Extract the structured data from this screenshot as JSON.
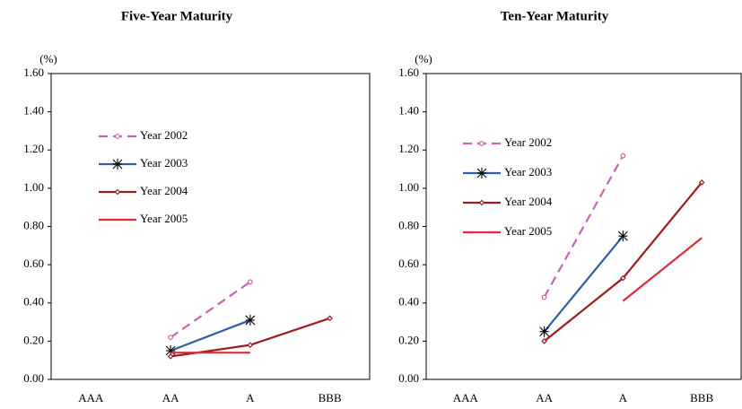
{
  "chart_data": [
    {
      "type": "line",
      "title": "Five-Year Maturity",
      "ylabel": "(%)",
      "categories": [
        "AAA",
        "AA",
        "A",
        "BBB"
      ],
      "ylim": [
        0,
        1.6
      ],
      "yticks": [
        {
          "value": 0,
          "label": "0.00"
        },
        {
          "value": 0.2,
          "label": "0.20"
        },
        {
          "value": 0.4,
          "label": "0.40"
        },
        {
          "value": 0.6,
          "label": "0.60"
        },
        {
          "value": 0.8,
          "label": "0.80"
        },
        {
          "value": 1.0,
          "label": "1.00"
        },
        {
          "value": 1.2,
          "label": "1.20"
        },
        {
          "value": 1.4,
          "label": "1.40"
        },
        {
          "value": 1.6,
          "label": "1.60"
        }
      ],
      "legend": "upper left",
      "series": [
        {
          "name": "Year 2002",
          "color": "#c864b4",
          "dash": true,
          "marker": "circle",
          "values": [
            null,
            0.22,
            0.51,
            null
          ]
        },
        {
          "name": "Year 2003",
          "color": "#2e5fa0",
          "dash": false,
          "marker": "asterisk",
          "values": [
            null,
            0.15,
            0.31,
            null
          ]
        },
        {
          "name": "Year 2004",
          "color": "#9b1c20",
          "dash": false,
          "marker": "diamond",
          "values": [
            null,
            0.12,
            0.18,
            0.32
          ]
        },
        {
          "name": "Year 2005",
          "color": "#e0283c",
          "dash": false,
          "marker": "none",
          "values": [
            null,
            0.14,
            0.14,
            null
          ]
        }
      ]
    },
    {
      "type": "line",
      "title": "Ten-Year Maturity",
      "ylabel": "(%)",
      "categories": [
        "AAA",
        "AA",
        "A",
        "BBB"
      ],
      "ylim": [
        0,
        1.6
      ],
      "yticks": [
        {
          "value": 0,
          "label": "0.00"
        },
        {
          "value": 0.2,
          "label": "0.20"
        },
        {
          "value": 0.4,
          "label": "0.40"
        },
        {
          "value": 0.6,
          "label": "0.60"
        },
        {
          "value": 0.8,
          "label": "0.80"
        },
        {
          "value": 1.0,
          "label": "1.00"
        },
        {
          "value": 1.2,
          "label": "1.20"
        },
        {
          "value": 1.4,
          "label": "1.40"
        },
        {
          "value": 1.6,
          "label": "1.60"
        }
      ],
      "legend": "upper left",
      "series": [
        {
          "name": "Year 2002",
          "color": "#c864b4",
          "dash": true,
          "marker": "circle",
          "values": [
            null,
            0.43,
            1.17,
            null
          ]
        },
        {
          "name": "Year 2003",
          "color": "#2e5fa0",
          "dash": false,
          "marker": "asterisk",
          "values": [
            null,
            0.25,
            0.75,
            null
          ]
        },
        {
          "name": "Year 2004",
          "color": "#9b1c20",
          "dash": false,
          "marker": "diamond",
          "values": [
            null,
            0.2,
            0.53,
            1.03
          ]
        },
        {
          "name": "Year 2005",
          "color": "#e0283c",
          "dash": false,
          "marker": "none",
          "values": [
            null,
            null,
            0.41,
            0.74
          ]
        }
      ]
    }
  ]
}
